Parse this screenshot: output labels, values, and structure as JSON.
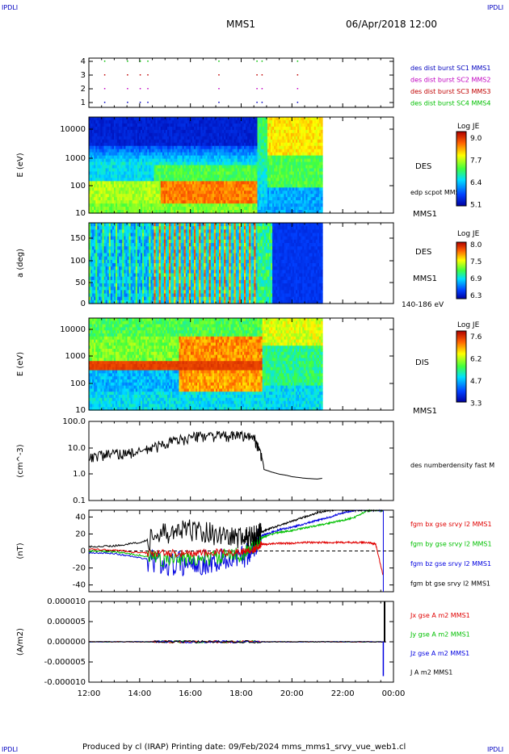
{
  "corner_label": "IPDLI",
  "header": {
    "mission": "MMS1",
    "datetime": "06/Apr/2018 12:00"
  },
  "footer": "Produced by cl (IRAP)   Printing date: 09/Feb/2024   mms_mms1_srvy_vue_web1.cl",
  "colors": {
    "red": "#e00000",
    "magenta": "#e000e0",
    "blue": "#0000e0",
    "green": "#00c000",
    "black": "#000000"
  },
  "chart_data": [
    {
      "type": "scatter",
      "panel": "burst",
      "yticks": [
        "4",
        "3",
        "2",
        "1"
      ],
      "legend": [
        {
          "label": "des dist burst SC1 MMS1",
          "color": "#0000c0"
        },
        {
          "label": "des dist burst SC2 MMS2",
          "color": "#c000c0"
        },
        {
          "label": "des dist burst SC3 MMS3",
          "color": "#c00000"
        },
        {
          "label": "des dist burst SC4 MMS4",
          "color": "#00c000"
        }
      ],
      "burst_times_hours": [
        12.6,
        13.5,
        14.0,
        14.3,
        17.1,
        18.6,
        18.8,
        20.2
      ]
    },
    {
      "type": "heatmap",
      "panel": "des_energy",
      "ylabel": "E (eV)",
      "yticks": [
        "10000",
        "1000",
        "100",
        "10"
      ],
      "label": "DES",
      "extra": "edp scpot MMS1",
      "sc": "MMS1",
      "colorbar": {
        "title": "Log JE",
        "ticks": [
          "9.0",
          "7.7",
          "6.4",
          "5.1"
        ]
      }
    },
    {
      "type": "heatmap",
      "panel": "des_pitch",
      "ylabel": "a (deg)",
      "yticks": [
        "150",
        "100",
        "50",
        "0"
      ],
      "label": "DES",
      "sc": "MMS1",
      "range": "140-186 eV",
      "colorbar": {
        "title": "Log JE",
        "ticks": [
          "8.0",
          "7.5",
          "6.9",
          "6.3"
        ]
      }
    },
    {
      "type": "heatmap",
      "panel": "dis_energy",
      "ylabel": "E (eV)",
      "yticks": [
        "10000",
        "1000",
        "100",
        "10"
      ],
      "label": "DIS",
      "sc": "MMS1",
      "colorbar": {
        "title": "Log JE",
        "ticks": [
          "7.6",
          "6.2",
          "4.7",
          "3.3"
        ]
      }
    },
    {
      "type": "line",
      "panel": "density",
      "ylabel": "(cm^-3)",
      "yticks": [
        "100.0",
        "10.0",
        "1.0",
        "0.1"
      ],
      "ylim": [
        0.1,
        100
      ],
      "log": true,
      "legend": [
        {
          "label": "des numberdensity fast M",
          "color": "#000000"
        }
      ],
      "x": [
        12.0,
        12.5,
        13.0,
        13.5,
        14.0,
        14.5,
        15.0,
        15.5,
        16.0,
        16.5,
        17.0,
        17.5,
        18.0,
        18.5,
        18.7,
        18.9,
        19.2,
        19.5,
        19.8,
        20.0,
        20.5,
        21.0,
        21.2
      ],
      "y": [
        4.5,
        5.5,
        6,
        6.5,
        7,
        10,
        15,
        20,
        25,
        30,
        30,
        28,
        30,
        25,
        8,
        1.5,
        1.2,
        1.0,
        0.9,
        0.8,
        0.7,
        0.65,
        0.7
      ]
    },
    {
      "type": "line",
      "panel": "bfield",
      "ylabel": "(nT)",
      "yticks": [
        "40",
        "20",
        "0",
        "-20",
        "-40"
      ],
      "ylim": [
        -48,
        48
      ],
      "legend": [
        {
          "label": "fgm bx gse srvy l2 MMS1",
          "color": "#e00000"
        },
        {
          "label": "fgm by gse srvy l2 MMS1",
          "color": "#00c000"
        },
        {
          "label": "fgm bz gse srvy l2 MMS1",
          "color": "#0000e0"
        },
        {
          "label": "fgm bt gse srvy l2 MMS1",
          "color": "#000000"
        }
      ],
      "x": [
        12.0,
        13.0,
        14.0,
        15.0,
        16.0,
        17.0,
        18.0,
        18.5,
        18.8,
        19.0,
        19.5,
        20.0,
        20.5,
        21.0,
        21.5,
        22.0,
        22.5,
        23.0,
        23.3,
        23.6
      ],
      "bx": [
        2,
        1,
        -2,
        -3,
        -3,
        -2,
        -1,
        2,
        8,
        8,
        9,
        9,
        10,
        10,
        10,
        10,
        10,
        10,
        8,
        -30
      ],
      "by": [
        0,
        -1,
        -5,
        -10,
        -10,
        -8,
        -4,
        5,
        15,
        18,
        22,
        24,
        27,
        30,
        33,
        36,
        40,
        48,
        48,
        48
      ],
      "bz": [
        -2,
        -3,
        -8,
        -15,
        -15,
        -12,
        -8,
        5,
        18,
        20,
        25,
        28,
        32,
        36,
        40,
        45,
        48,
        48,
        48,
        48
      ],
      "bt": [
        5,
        6,
        10,
        20,
        25,
        20,
        15,
        18,
        22,
        25,
        30,
        35,
        40,
        45,
        48,
        48,
        48,
        48,
        48,
        48
      ]
    },
    {
      "type": "line",
      "panel": "current",
      "ylabel": "(A/m2)",
      "yticks": [
        "0.000010",
        "0.000005",
        "0.000000",
        "-0.000005",
        "-0.000010"
      ],
      "ylim": [
        -1e-05,
        1e-05
      ],
      "legend": [
        {
          "label": "Jx gse A m2 MMS1",
          "color": "#e00000"
        },
        {
          "label": "Jy gse A m2 MMS1",
          "color": "#00c000"
        },
        {
          "label": "Jz gse A m2 MMS1",
          "color": "#0000e0"
        },
        {
          "label": "J A m2 MMS1",
          "color": "#000000"
        }
      ]
    }
  ],
  "xaxis": {
    "ticks": [
      "12:00",
      "14:00",
      "16:00",
      "18:00",
      "20:00",
      "22:00",
      "00:00"
    ],
    "range_hours": [
      12,
      24
    ]
  }
}
